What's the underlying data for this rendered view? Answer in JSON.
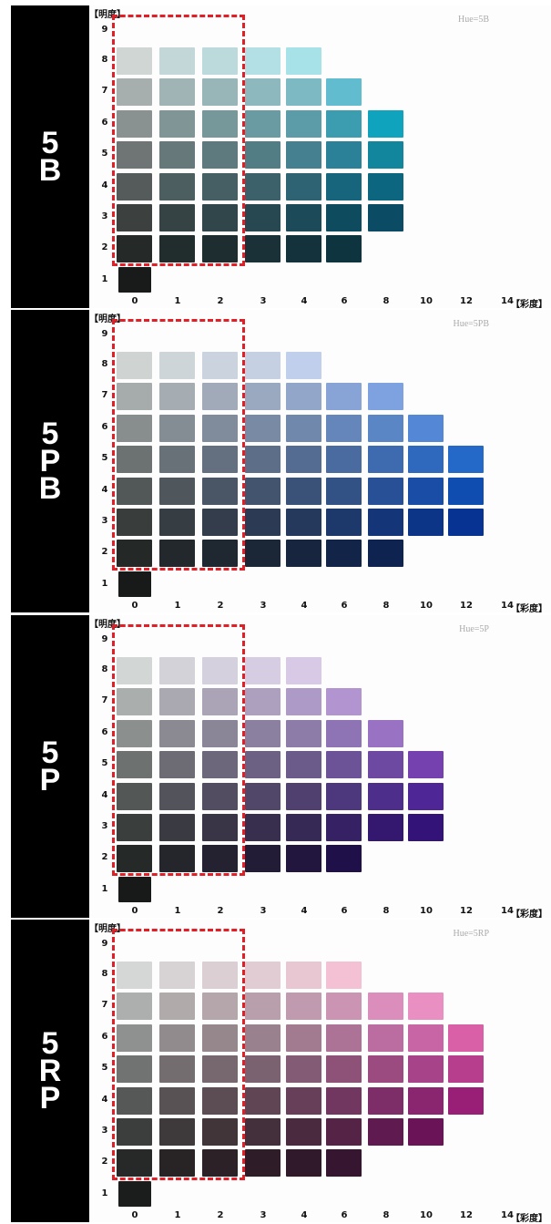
{
  "axes": {
    "value_title": "【明度】",
    "chroma_unit": "【彩度】",
    "value_ticks": [
      "9",
      "8",
      "7",
      "6",
      "5",
      "4",
      "3",
      "2",
      "1"
    ],
    "chroma_ticks": [
      "0",
      "1",
      "2",
      "3",
      "4",
      "6",
      "8",
      "10",
      "12",
      "14"
    ]
  },
  "panels": [
    {
      "side_label": [
        "5",
        "B"
      ],
      "hue_label": "Hue=5B",
      "rows": [
        {
          "value": "8",
          "chips": [
            "#cfd6d4",
            "#c3d7d8",
            "#bcdadc",
            "#b2e0e5",
            "#a6e2e8"
          ]
        },
        {
          "value": "7",
          "chips": [
            "#a6aeae",
            "#a0b3b5",
            "#98b5b8",
            "#8cb8be",
            "#7db9c3",
            "#62bcd0"
          ]
        },
        {
          "value": "6",
          "chips": [
            "#8a9291",
            "#7f9596",
            "#76989b",
            "#6a9ba2",
            "#5b9ca8",
            "#3c9db1",
            "#10a3bd"
          ]
        },
        {
          "value": "5",
          "chips": [
            "#6e7574",
            "#66787a",
            "#5f7a7e",
            "#537d85",
            "#458090",
            "#2b8197",
            "#11869d"
          ]
        },
        {
          "value": "4",
          "chips": [
            "#545b5a",
            "#4c5e60",
            "#465f64",
            "#3c616a",
            "#2d6372",
            "#17657c",
            "#0c6680"
          ]
        },
        {
          "value": "3",
          "chips": [
            "#3c4140",
            "#364345",
            "#31464a",
            "#284851",
            "#1c4a58",
            "#0e4b5e",
            "#0b4b63"
          ]
        },
        {
          "value": "2",
          "chips": [
            "#252a29",
            "#212c2c",
            "#1e2e30",
            "#193137",
            "#13323c",
            "#0e3440"
          ]
        }
      ],
      "value1_chip": "#181b1a",
      "colors": {
        "frame": "#e21f26"
      }
    },
    {
      "side_label": [
        "5",
        "P",
        "B"
      ],
      "hue_label": "Hue=5PB",
      "rows": [
        {
          "value": "8",
          "chips": [
            "#cfd4d3",
            "#cdd5d9",
            "#cbd3de",
            "#c6d0e3",
            "#c0cfeb"
          ]
        },
        {
          "value": "7",
          "chips": [
            "#a6acab",
            "#a5adb3",
            "#a1aab9",
            "#9aa8c0",
            "#91a6c9",
            "#88a3d6",
            "#7ea2e0"
          ]
        },
        {
          "value": "6",
          "chips": [
            "#888e8d",
            "#858d94",
            "#808c9b",
            "#798aa4",
            "#7088ac",
            "#6486ba",
            "#5b86c6",
            "#5488d7"
          ]
        },
        {
          "value": "5",
          "chips": [
            "#6c7271",
            "#697178",
            "#647080",
            "#5d6e88",
            "#556c92",
            "#4a6ba0",
            "#3e6aaf",
            "#2f69be",
            "#2468c8"
          ]
        },
        {
          "value": "4",
          "chips": [
            "#525857",
            "#4f575d",
            "#4a5665",
            "#43546e",
            "#3b5278",
            "#325286",
            "#275096",
            "#1a4ea6",
            "#0f4eb0"
          ]
        },
        {
          "value": "3",
          "chips": [
            "#393e3d",
            "#373e43",
            "#333d4b",
            "#2c3b53",
            "#25395d",
            "#1d386a",
            "#143678",
            "#0c3588",
            "#073493"
          ]
        },
        {
          "value": "2",
          "chips": [
            "#242827",
            "#22282b",
            "#1f2730",
            "#1b2637",
            "#17253f",
            "#122447",
            "#0e2350"
          ]
        }
      ],
      "value1_chip": "#171a19",
      "colors": {
        "frame": "#e21f26"
      }
    },
    {
      "side_label": [
        "5",
        "P"
      ],
      "hue_label": "Hue=5P",
      "rows": [
        {
          "value": "8",
          "chips": [
            "#d2d6d4",
            "#d3d2d8",
            "#d4d0dd",
            "#d6cde2",
            "#d8c9e6"
          ]
        },
        {
          "value": "7",
          "chips": [
            "#aaaeac",
            "#aaa8b0",
            "#aba4b6",
            "#ad9fbe",
            "#ae9ac6",
            "#b294d0"
          ]
        },
        {
          "value": "6",
          "chips": [
            "#8b8f8d",
            "#8b8a92",
            "#8b8598",
            "#8c80a0",
            "#8d7ba8",
            "#8f74b5",
            "#9a72c3"
          ]
        },
        {
          "value": "5",
          "chips": [
            "#6d716f",
            "#6d6c75",
            "#6c677b",
            "#6c6183",
            "#6b5b8b",
            "#6c5397",
            "#6e49a2",
            "#7441ae"
          ]
        },
        {
          "value": "4",
          "chips": [
            "#535755",
            "#53535b",
            "#524d61",
            "#514768",
            "#504070",
            "#4e387d",
            "#4d2e8b",
            "#4e2695"
          ]
        },
        {
          "value": "3",
          "chips": [
            "#3a3e3c",
            "#3a3a42",
            "#393547",
            "#382f4e",
            "#372956",
            "#352163",
            "#34186f",
            "#331378"
          ]
        },
        {
          "value": "2",
          "chips": [
            "#252927",
            "#25252c",
            "#242131",
            "#231c37",
            "#22163e",
            "#20104a"
          ]
        }
      ],
      "value1_chip": "#171a19",
      "colors": {
        "frame": "#e21f26"
      }
    },
    {
      "side_label": [
        "5",
        "R",
        "P"
      ],
      "hue_label": "Hue=5RP",
      "rows": [
        {
          "value": "8",
          "chips": [
            "#d4d7d5",
            "#d7d3d4",
            "#dbcfd3",
            "#e0ccd2",
            "#e8c6d2",
            "#f3c0d4"
          ]
        },
        {
          "value": "7",
          "chips": [
            "#acafad",
            "#b0aaab",
            "#b4a6aa",
            "#b89fab",
            "#c09aae",
            "#cb94b3",
            "#db8dbb",
            "#ea8fc2"
          ]
        },
        {
          "value": "6",
          "chips": [
            "#8e918f",
            "#918b8d",
            "#96878d",
            "#9a818e",
            "#a27b91",
            "#ad7397",
            "#bb6ca0",
            "#c765a5",
            "#d95fa6"
          ]
        },
        {
          "value": "5",
          "chips": [
            "#707371",
            "#736d6f",
            "#77686f",
            "#7b6270",
            "#835b74",
            "#8e5279",
            "#9b4b80",
            "#a74388",
            "#b73e8c"
          ]
        },
        {
          "value": "4",
          "chips": [
            "#555856",
            "#585254",
            "#5c4d54",
            "#604655",
            "#673f58",
            "#723760",
            "#7d2e68",
            "#8a2570",
            "#981e76"
          ]
        },
        {
          "value": "3",
          "chips": [
            "#3b3e3c",
            "#3e393a",
            "#41353a",
            "#44303c",
            "#4a2a3f",
            "#542346",
            "#5f1b4f",
            "#6a1457"
          ]
        },
        {
          "value": "2",
          "chips": [
            "#262927",
            "#282426",
            "#2b2127",
            "#2e1d29",
            "#31192c",
            "#361531"
          ]
        }
      ],
      "value1_chip": "#1b1d1c",
      "colors": {
        "frame": "#e21f26"
      }
    }
  ]
}
